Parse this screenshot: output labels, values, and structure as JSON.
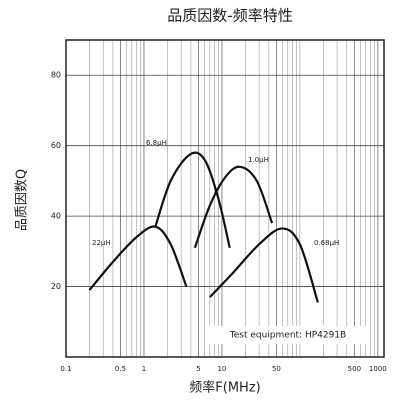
{
  "chart_data": {
    "type": "line",
    "title": "品质因数-频率特性",
    "xlabel": "频率F(MHz)",
    "ylabel": "品质因数Q",
    "xscale": "log",
    "xlim": [
      0.1,
      1200
    ],
    "xticks": [
      0.1,
      0.5,
      1,
      5,
      10,
      50,
      500,
      1000
    ],
    "ylim": [
      0,
      90
    ],
    "yticks": [
      20,
      40,
      60,
      80
    ],
    "grid": true,
    "minor_grid": true,
    "annotation": "Test equipment: HP4291B",
    "series": [
      {
        "name": "22μH",
        "color": "#111111",
        "x": [
          0.2,
          0.4,
          0.8,
          1.4,
          2.2,
          3.5
        ],
        "values": [
          19,
          27,
          34,
          37,
          32,
          20
        ]
      },
      {
        "name": "6.8μH",
        "color": "#111111",
        "x": [
          1.4,
          2.2,
          3.9,
          6,
          9,
          12.6
        ],
        "values": [
          37,
          50,
          57.5,
          56,
          45,
          31
        ]
      },
      {
        "name": "1.0μH",
        "color": "#111111",
        "x": [
          4.5,
          7,
          11,
          17,
          28,
          44
        ],
        "values": [
          31,
          43,
          51,
          54,
          50,
          38
        ]
      },
      {
        "name": "0.68μH",
        "color": "#111111",
        "x": [
          7,
          14,
          30,
          59,
          100,
          170
        ],
        "values": [
          17,
          24,
          32,
          36.5,
          32,
          15.5
        ]
      }
    ]
  }
}
